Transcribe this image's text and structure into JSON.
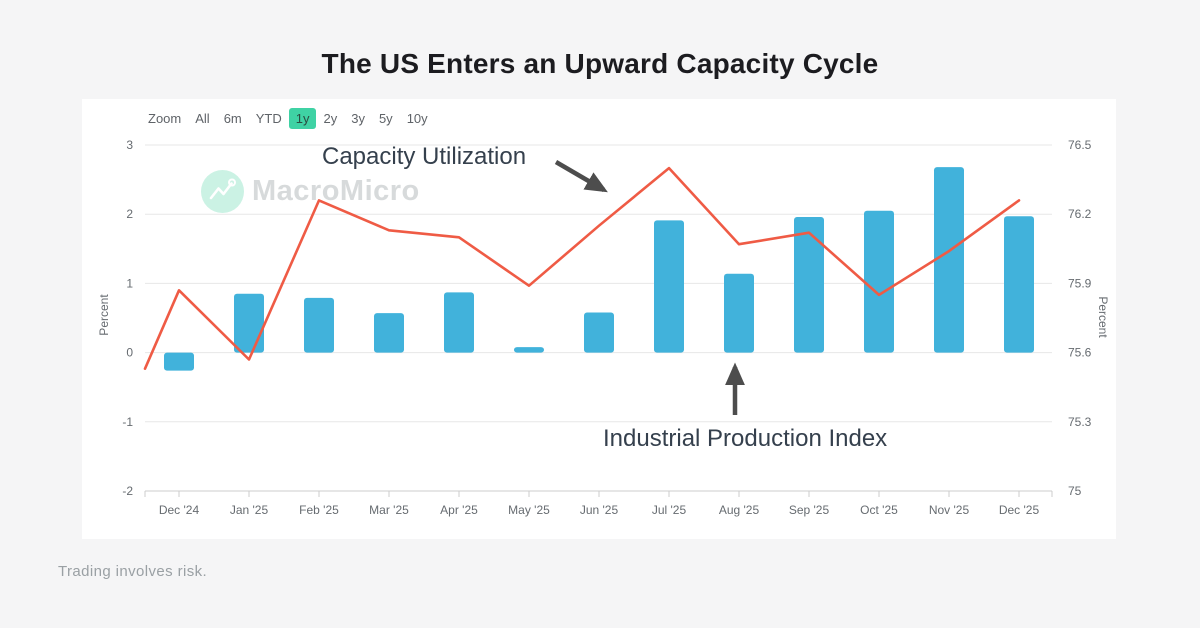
{
  "page": {
    "title": "The US Enters an Upward Capacity Cycle",
    "footer": "Trading involves risk."
  },
  "toolbar": {
    "zoom_label": "Zoom",
    "ranges": [
      "All",
      "6m",
      "YTD",
      "1y",
      "2y",
      "3y",
      "5y",
      "10y"
    ],
    "active_range": "1y",
    "active_bg": "#3fd2a4"
  },
  "watermark": {
    "text": "MacroMicro"
  },
  "annotations": {
    "line_label": "Capacity Utilization",
    "bar_label": "Industrial Production Index"
  },
  "chart_data": {
    "type": "combo",
    "categories": [
      "Dec '24",
      "Jan '25",
      "Feb '25",
      "Mar '25",
      "Apr '25",
      "May '25",
      "Jun '25",
      "Jul '25",
      "Aug '25",
      "Sep '25",
      "Oct '25",
      "Nov '25",
      "Dec '25"
    ],
    "series": [
      {
        "name": "Industrial Production Index",
        "type": "bar",
        "axis": "left",
        "color": "#41b2db",
        "values": [
          -0.26,
          0.85,
          0.79,
          0.57,
          0.87,
          0.08,
          0.58,
          1.91,
          1.14,
          1.96,
          2.05,
          2.68,
          1.97
        ]
      },
      {
        "name": "Capacity Utilization",
        "type": "line",
        "axis": "right",
        "color": "#ef5b45",
        "edge_start_value": 75.53,
        "values": [
          75.87,
          75.57,
          76.26,
          76.13,
          76.1,
          75.89,
          76.15,
          76.4,
          76.07,
          76.12,
          75.85,
          76.04,
          76.26
        ]
      }
    ],
    "left_axis": {
      "label": "Percent",
      "ticks": [
        3,
        2,
        1,
        0,
        -1,
        -2
      ],
      "min": -2,
      "max": 3
    },
    "right_axis": {
      "label": "Percent",
      "ticks": [
        76.5,
        76.2,
        75.9,
        75.6,
        75.3,
        75
      ],
      "min": 75,
      "max": 76.5
    },
    "grid": true,
    "legend": "none"
  }
}
